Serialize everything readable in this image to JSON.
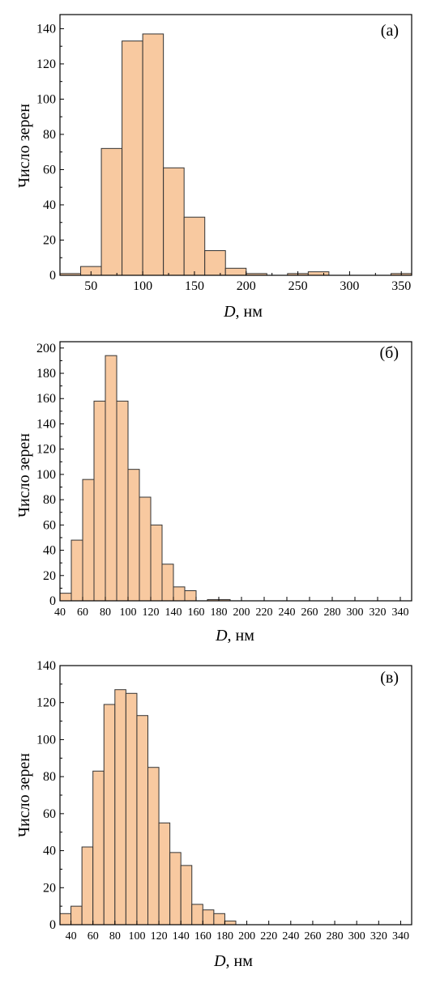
{
  "colors": {
    "bar_fill": "#f8c9a0",
    "bar_edge": "#333333",
    "axis": "#000000"
  },
  "chart_data": [
    {
      "type": "bar",
      "panel_label": "(а)",
      "xlabel_italic": "D",
      "xlabel_rest": ", нм",
      "ylabel": "Число зерен",
      "xlim": [
        20,
        360
      ],
      "ylim": [
        0,
        148
      ],
      "xticks": [
        50,
        100,
        150,
        200,
        250,
        300,
        350
      ],
      "yticks": [
        0,
        20,
        40,
        60,
        80,
        100,
        120,
        140
      ],
      "bin_width": 20,
      "bins": [
        {
          "x0": 20,
          "value": 1
        },
        {
          "x0": 40,
          "value": 5
        },
        {
          "x0": 60,
          "value": 72
        },
        {
          "x0": 80,
          "value": 133
        },
        {
          "x0": 100,
          "value": 137
        },
        {
          "x0": 120,
          "value": 61
        },
        {
          "x0": 140,
          "value": 33
        },
        {
          "x0": 160,
          "value": 14
        },
        {
          "x0": 180,
          "value": 4
        },
        {
          "x0": 200,
          "value": 1
        },
        {
          "x0": 220,
          "value": 0
        },
        {
          "x0": 240,
          "value": 1
        },
        {
          "x0": 260,
          "value": 2
        },
        {
          "x0": 280,
          "value": 0
        },
        {
          "x0": 300,
          "value": 0
        },
        {
          "x0": 320,
          "value": 0
        },
        {
          "x0": 340,
          "value": 1
        }
      ]
    },
    {
      "type": "bar",
      "panel_label": "(б)",
      "xlabel_italic": "D",
      "xlabel_rest": ", нм",
      "ylabel": "Число зерен",
      "xlim": [
        40,
        350
      ],
      "ylim": [
        0,
        205
      ],
      "xticks": [
        40,
        60,
        80,
        100,
        120,
        140,
        160,
        180,
        200,
        220,
        240,
        260,
        280,
        300,
        320,
        340
      ],
      "yticks": [
        0,
        20,
        40,
        60,
        80,
        100,
        120,
        140,
        160,
        180,
        200
      ],
      "bin_width": 10,
      "bins": [
        {
          "x0": 40,
          "value": 6
        },
        {
          "x0": 50,
          "value": 48
        },
        {
          "x0": 60,
          "value": 96
        },
        {
          "x0": 70,
          "value": 158
        },
        {
          "x0": 80,
          "value": 194
        },
        {
          "x0": 90,
          "value": 158
        },
        {
          "x0": 100,
          "value": 104
        },
        {
          "x0": 110,
          "value": 82
        },
        {
          "x0": 120,
          "value": 60
        },
        {
          "x0": 130,
          "value": 29
        },
        {
          "x0": 140,
          "value": 11
        },
        {
          "x0": 150,
          "value": 8
        },
        {
          "x0": 160,
          "value": 0
        },
        {
          "x0": 170,
          "value": 1
        },
        {
          "x0": 180,
          "value": 1
        },
        {
          "x0": 190,
          "value": 0
        },
        {
          "x0": 200,
          "value": 0
        },
        {
          "x0": 210,
          "value": 0
        },
        {
          "x0": 220,
          "value": 0
        },
        {
          "x0": 230,
          "value": 0
        },
        {
          "x0": 240,
          "value": 0
        },
        {
          "x0": 250,
          "value": 0
        },
        {
          "x0": 260,
          "value": 0
        },
        {
          "x0": 270,
          "value": 0
        },
        {
          "x0": 280,
          "value": 0
        },
        {
          "x0": 290,
          "value": 0
        },
        {
          "x0": 300,
          "value": 0
        },
        {
          "x0": 310,
          "value": 0
        },
        {
          "x0": 320,
          "value": 0
        },
        {
          "x0": 330,
          "value": 0
        },
        {
          "x0": 340,
          "value": 0
        }
      ]
    },
    {
      "type": "bar",
      "panel_label": "(в)",
      "xlabel_italic": "D",
      "xlabel_rest": ", нм",
      "ylabel": "Число зерен",
      "xlim": [
        30,
        350
      ],
      "ylim": [
        0,
        140
      ],
      "xticks": [
        40,
        60,
        80,
        100,
        120,
        140,
        160,
        180,
        200,
        220,
        240,
        260,
        280,
        300,
        320,
        340
      ],
      "yticks": [
        0,
        20,
        40,
        60,
        80,
        100,
        120,
        140
      ],
      "bin_width": 10,
      "bins": [
        {
          "x0": 30,
          "value": 6
        },
        {
          "x0": 40,
          "value": 10
        },
        {
          "x0": 50,
          "value": 42
        },
        {
          "x0": 60,
          "value": 83
        },
        {
          "x0": 70,
          "value": 119
        },
        {
          "x0": 80,
          "value": 127
        },
        {
          "x0": 90,
          "value": 125
        },
        {
          "x0": 100,
          "value": 113
        },
        {
          "x0": 110,
          "value": 85
        },
        {
          "x0": 120,
          "value": 55
        },
        {
          "x0": 130,
          "value": 39
        },
        {
          "x0": 140,
          "value": 32
        },
        {
          "x0": 150,
          "value": 11
        },
        {
          "x0": 160,
          "value": 8
        },
        {
          "x0": 170,
          "value": 6
        },
        {
          "x0": 180,
          "value": 2
        },
        {
          "x0": 190,
          "value": 0
        },
        {
          "x0": 200,
          "value": 0
        },
        {
          "x0": 210,
          "value": 0
        },
        {
          "x0": 220,
          "value": 0
        },
        {
          "x0": 230,
          "value": 0
        },
        {
          "x0": 240,
          "value": 0
        },
        {
          "x0": 250,
          "value": 0
        },
        {
          "x0": 260,
          "value": 0
        },
        {
          "x0": 270,
          "value": 0
        },
        {
          "x0": 280,
          "value": 0
        },
        {
          "x0": 290,
          "value": 0
        },
        {
          "x0": 300,
          "value": 0
        },
        {
          "x0": 310,
          "value": 0
        },
        {
          "x0": 320,
          "value": 0
        },
        {
          "x0": 330,
          "value": 0
        },
        {
          "x0": 340,
          "value": 0
        }
      ]
    }
  ]
}
